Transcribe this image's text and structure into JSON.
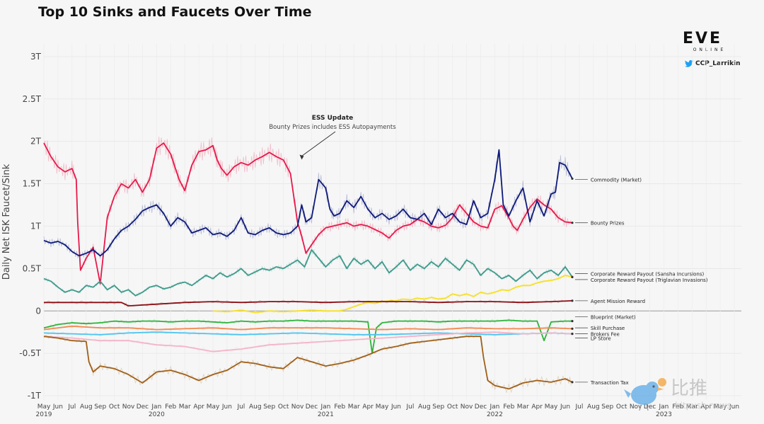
{
  "page": {
    "title": "Top 10 Sinks and Faucets Over Time",
    "logo": {
      "word": "EVE",
      "sub": "ONLINE"
    },
    "twitter_handle": "CCP_Larrikin",
    "watermark": {
      "chinese": "比推",
      "url": "bitpush.news"
    }
  },
  "colors": {
    "bounty": "#e8194a",
    "commodity": "#0e1a7a",
    "sansha": "#3d9a8b",
    "triglavian": "#f5e02a",
    "agent": "#8b0f14",
    "blueprint": "#2db43c",
    "skill": "#f08a52",
    "brokers": "#4fc4f0",
    "lpstore": "#f4b4c8",
    "tax": "#a06018"
  },
  "chart_data": {
    "type": "line",
    "title": "Top 10 Sinks and Faucets Over Time",
    "ylabel": "Daily Net ISK Faucet/Sink",
    "xlabel": "",
    "ylim": [
      -1.05,
      3.15
    ],
    "xlim": [
      0,
      49.5
    ],
    "grid": true,
    "yticks": [
      {
        "v": 3,
        "label": "3T"
      },
      {
        "v": 2.5,
        "label": "2.5T"
      },
      {
        "v": 2,
        "label": "2T"
      },
      {
        "v": 1.5,
        "label": "1.5T"
      },
      {
        "v": 1,
        "label": "1T"
      },
      {
        "v": 0.5,
        "label": "0.5T"
      },
      {
        "v": 0,
        "label": "0"
      },
      {
        "v": -0.5,
        "label": "-0.5T"
      },
      {
        "v": -1,
        "label": "-1T"
      }
    ],
    "months": [
      "May",
      "Jun",
      "Jul",
      "Aug",
      "Sep",
      "Oct",
      "Nov",
      "Dec",
      "Jan",
      "Feb",
      "Mar",
      "Apr",
      "May",
      "Jun",
      "Jul",
      "Aug",
      "Sep",
      "Oct",
      "Nov",
      "Dec",
      "Jan",
      "Feb",
      "Mar",
      "Apr",
      "May",
      "Jun",
      "Jul",
      "Aug",
      "Sep",
      "Oct",
      "Nov",
      "Dec",
      "Jan",
      "Feb",
      "Mar",
      "Apr",
      "May",
      "Jun",
      "Jul",
      "Aug",
      "Sep",
      "Oct",
      "Nov",
      "Dec",
      "Jan",
      "Feb",
      "Mar",
      "Apr",
      "May",
      "Jun",
      "Jul",
      "Aug",
      "Sep",
      "Oct",
      "Nov",
      "Dec",
      "Jan"
    ],
    "years": [
      {
        "label": "2019",
        "x": 0
      },
      {
        "label": "2020",
        "x": 8
      },
      {
        "label": "2021",
        "x": 20
      },
      {
        "label": "2022",
        "x": 32
      },
      {
        "label": "2023",
        "x": 44
      }
    ],
    "annotation": {
      "title": "ESS Update",
      "text": "Bounty Prizes includes ESS Autopayments",
      "x": 18.3,
      "y": 1.76
    },
    "series": [
      {
        "name": "Bounty Prizes",
        "color_key": "bounty",
        "x": [
          0,
          0.5,
          1,
          1.5,
          2,
          2.3,
          2.4,
          2.6,
          3,
          3.5,
          4,
          4.5,
          5,
          5.5,
          6,
          6.5,
          7,
          7.5,
          8,
          8.5,
          9,
          9.3,
          9.6,
          10,
          10.5,
          11,
          11.5,
          12,
          12.3,
          12.6,
          13,
          13.5,
          14,
          14.5,
          15,
          15.5,
          16,
          16.5,
          17,
          17.5,
          18,
          18.3,
          18.6,
          19,
          19.5,
          20,
          20.5,
          21,
          21.5,
          22,
          22.5,
          23,
          23.5,
          24,
          24.5,
          25,
          25.5,
          26,
          26.5,
          27,
          27.5,
          28,
          28.5,
          29,
          29.5,
          30,
          30.5,
          31,
          31.5,
          32,
          32.5,
          33,
          33.3,
          33.6,
          34,
          34.5,
          35,
          35.5,
          36,
          36.5,
          37,
          37.5
        ],
        "y": [
          1.98,
          1.82,
          1.7,
          1.64,
          1.68,
          1.55,
          1.05,
          0.48,
          0.62,
          0.75,
          0.32,
          1.1,
          1.35,
          1.5,
          1.45,
          1.55,
          1.4,
          1.55,
          1.92,
          1.98,
          1.85,
          1.7,
          1.55,
          1.42,
          1.72,
          1.88,
          1.9,
          1.95,
          1.78,
          1.68,
          1.6,
          1.7,
          1.75,
          1.72,
          1.78,
          1.82,
          1.87,
          1.82,
          1.78,
          1.62,
          1.05,
          0.88,
          0.68,
          0.78,
          0.9,
          0.98,
          1.0,
          1.02,
          1.04,
          1.0,
          1.02,
          1.0,
          0.96,
          0.92,
          0.86,
          0.95,
          1.0,
          1.02,
          1.08,
          1.05,
          1.0,
          0.98,
          1.01,
          1.1,
          1.25,
          1.15,
          1.05,
          1.0,
          0.98,
          1.2,
          1.24,
          1.1,
          1.0,
          0.95,
          1.08,
          1.22,
          1.32,
          1.25,
          1.2,
          1.1,
          1.05,
          1.04
        ]
      },
      {
        "name": "Commodity (Market)",
        "color_key": "commodity",
        "x": [
          0,
          0.5,
          1,
          1.5,
          2,
          2.5,
          3,
          3.5,
          4,
          4.5,
          5,
          5.5,
          6,
          6.5,
          7,
          7.5,
          8,
          8.5,
          9,
          9.5,
          10,
          10.5,
          11,
          11.5,
          12,
          12.5,
          13,
          13.5,
          14,
          14.5,
          15,
          15.5,
          16,
          16.5,
          17,
          17.5,
          18,
          18.3,
          18.6,
          19,
          19.5,
          20,
          20.3,
          20.6,
          21,
          21.5,
          22,
          22.5,
          23,
          23.5,
          24,
          24.5,
          25,
          25.5,
          26,
          26.5,
          27,
          27.5,
          28,
          28.5,
          29,
          29.5,
          30,
          30.5,
          31,
          31.5,
          32,
          32.3,
          32.6,
          33,
          33.5,
          34,
          34.5,
          35,
          35.5,
          36,
          36.3,
          36.6,
          37,
          37.5
        ],
        "y": [
          0.83,
          0.8,
          0.82,
          0.78,
          0.7,
          0.65,
          0.68,
          0.72,
          0.65,
          0.72,
          0.85,
          0.95,
          1.0,
          1.08,
          1.18,
          1.22,
          1.25,
          1.15,
          1.0,
          1.1,
          1.05,
          0.92,
          0.95,
          0.98,
          0.9,
          0.92,
          0.88,
          0.95,
          1.1,
          0.92,
          0.9,
          0.95,
          0.98,
          0.92,
          0.9,
          0.92,
          1.0,
          1.25,
          1.05,
          1.1,
          1.55,
          1.45,
          1.2,
          1.12,
          1.15,
          1.3,
          1.22,
          1.35,
          1.2,
          1.1,
          1.15,
          1.08,
          1.12,
          1.2,
          1.1,
          1.08,
          1.15,
          1.02,
          1.2,
          1.1,
          1.15,
          1.05,
          1.02,
          1.3,
          1.1,
          1.15,
          1.55,
          1.9,
          1.25,
          1.12,
          1.3,
          1.45,
          1.05,
          1.3,
          1.12,
          1.38,
          1.4,
          1.75,
          1.72,
          1.56
        ]
      },
      {
        "name": "Corporate Reward Payout (Sansha Incursions)",
        "color_key": "sansha",
        "x": [
          0,
          0.5,
          1,
          1.5,
          2,
          2.5,
          3,
          3.5,
          4,
          4.5,
          5,
          5.5,
          6,
          6.5,
          7,
          7.5,
          8,
          8.5,
          9,
          9.5,
          10,
          10.5,
          11,
          11.5,
          12,
          12.5,
          13,
          13.5,
          14,
          14.5,
          15,
          15.5,
          16,
          16.5,
          17,
          17.5,
          18,
          18.5,
          19,
          19.5,
          20,
          20.5,
          21,
          21.5,
          22,
          22.5,
          23,
          23.5,
          24,
          24.5,
          25,
          25.5,
          26,
          26.5,
          27,
          27.5,
          28,
          28.5,
          29,
          29.5,
          30,
          30.5,
          31,
          31.5,
          32,
          32.5,
          33,
          33.5,
          34,
          34.5,
          35,
          35.5,
          36,
          36.5,
          37,
          37.5
        ],
        "y": [
          0.38,
          0.35,
          0.28,
          0.22,
          0.25,
          0.22,
          0.3,
          0.28,
          0.35,
          0.25,
          0.3,
          0.22,
          0.25,
          0.18,
          0.22,
          0.28,
          0.3,
          0.26,
          0.28,
          0.32,
          0.34,
          0.3,
          0.36,
          0.42,
          0.38,
          0.45,
          0.4,
          0.44,
          0.5,
          0.42,
          0.46,
          0.5,
          0.48,
          0.52,
          0.5,
          0.55,
          0.6,
          0.52,
          0.72,
          0.62,
          0.52,
          0.6,
          0.65,
          0.5,
          0.62,
          0.55,
          0.6,
          0.5,
          0.58,
          0.45,
          0.52,
          0.6,
          0.48,
          0.55,
          0.5,
          0.58,
          0.52,
          0.62,
          0.55,
          0.48,
          0.6,
          0.55,
          0.42,
          0.5,
          0.45,
          0.38,
          0.42,
          0.35,
          0.42,
          0.48,
          0.38,
          0.45,
          0.48,
          0.42,
          0.52,
          0.4
        ]
      },
      {
        "name": "Corporate Reward Payout (Triglavian Invasions)",
        "color_key": "triglavian",
        "x": [
          12,
          13,
          14,
          15,
          16,
          17,
          18,
          19,
          20,
          21,
          21.5,
          22,
          22.5,
          23,
          23.5,
          24,
          24.5,
          25,
          25.5,
          26,
          26.5,
          27,
          27.5,
          28,
          28.5,
          29,
          29.5,
          30,
          30.5,
          31,
          31.5,
          32,
          32.5,
          33,
          33.5,
          34,
          34.5,
          35,
          35.5,
          36,
          36.5,
          37,
          37.5
        ],
        "y": [
          0,
          -0.01,
          0.01,
          -0.02,
          0,
          -0.01,
          0,
          0.01,
          0,
          0,
          0.02,
          0.05,
          0.08,
          0.1,
          0.09,
          0.11,
          0.12,
          0.12,
          0.14,
          0.13,
          0.15,
          0.14,
          0.16,
          0.14,
          0.15,
          0.2,
          0.18,
          0.2,
          0.17,
          0.22,
          0.2,
          0.22,
          0.25,
          0.24,
          0.28,
          0.3,
          0.3,
          0.33,
          0.35,
          0.36,
          0.38,
          0.42,
          0.4
        ]
      },
      {
        "name": "Agent Mission Reward",
        "color_key": "agent",
        "x": [
          0,
          2,
          4,
          5.5,
          6,
          8,
          10,
          12,
          14,
          16,
          18,
          20,
          22,
          24,
          26,
          28,
          30,
          32,
          34,
          36,
          37.5
        ],
        "y": [
          0.1,
          0.1,
          0.1,
          0.1,
          0.06,
          0.08,
          0.1,
          0.11,
          0.1,
          0.11,
          0.11,
          0.1,
          0.11,
          0.11,
          0.11,
          0.1,
          0.11,
          0.11,
          0.1,
          0.11,
          0.12
        ]
      },
      {
        "name": "Blueprint (Market)",
        "color_key": "blueprint",
        "x": [
          0,
          1,
          2,
          3,
          4,
          5,
          6,
          7,
          8,
          9,
          10,
          11,
          12,
          13,
          14,
          15,
          16,
          17,
          18,
          19,
          20,
          21,
          22,
          23,
          23.3,
          23.6,
          24,
          25,
          26,
          27,
          28,
          29,
          30,
          31,
          32,
          33,
          34,
          35,
          35.5,
          36,
          37,
          37.5
        ],
        "y": [
          -0.2,
          -0.16,
          -0.14,
          -0.15,
          -0.14,
          -0.12,
          -0.13,
          -0.12,
          -0.12,
          -0.13,
          -0.12,
          -0.12,
          -0.13,
          -0.14,
          -0.12,
          -0.13,
          -0.12,
          -0.12,
          -0.11,
          -0.12,
          -0.12,
          -0.12,
          -0.12,
          -0.13,
          -0.5,
          -0.2,
          -0.14,
          -0.12,
          -0.12,
          -0.12,
          -0.13,
          -0.12,
          -0.12,
          -0.12,
          -0.12,
          -0.11,
          -0.12,
          -0.12,
          -0.35,
          -0.13,
          -0.12,
          -0.12
        ]
      },
      {
        "name": "Skill Purchase",
        "color_key": "skill",
        "x": [
          0,
          2,
          4,
          6,
          8,
          10,
          12,
          14,
          16,
          18,
          20,
          22,
          24,
          26,
          28,
          30,
          32,
          34,
          36,
          37.5
        ],
        "y": [
          -0.22,
          -0.18,
          -0.2,
          -0.2,
          -0.22,
          -0.21,
          -0.2,
          -0.22,
          -0.2,
          -0.2,
          -0.2,
          -0.21,
          -0.22,
          -0.21,
          -0.22,
          -0.2,
          -0.21,
          -0.21,
          -0.2,
          -0.21
        ]
      },
      {
        "name": "Brokers Fee",
        "color_key": "brokers",
        "x": [
          0,
          2,
          4,
          6,
          8,
          10,
          12,
          14,
          16,
          18,
          20,
          22,
          24,
          26,
          28,
          30,
          32,
          34,
          36,
          37.5
        ],
        "y": [
          -0.26,
          -0.27,
          -0.28,
          -0.26,
          -0.25,
          -0.26,
          -0.27,
          -0.28,
          -0.27,
          -0.26,
          -0.27,
          -0.28,
          -0.28,
          -0.27,
          -0.26,
          -0.27,
          -0.28,
          -0.27,
          -0.26,
          -0.27
        ]
      },
      {
        "name": "LP Store",
        "color_key": "lpstore",
        "x": [
          0,
          2,
          4,
          6,
          8,
          10,
          12,
          14,
          16,
          18,
          20,
          22,
          24,
          26,
          28,
          30,
          32,
          34,
          36,
          37.5
        ],
        "y": [
          -0.3,
          -0.32,
          -0.35,
          -0.35,
          -0.4,
          -0.42,
          -0.48,
          -0.45,
          -0.4,
          -0.38,
          -0.36,
          -0.34,
          -0.32,
          -0.3,
          -0.28,
          -0.26,
          -0.25,
          -0.27,
          -0.26,
          -0.27
        ]
      },
      {
        "name": "Transaction Tax",
        "color_key": "tax",
        "x": [
          0,
          1,
          2,
          3,
          3.2,
          3.5,
          4,
          5,
          6,
          7,
          8,
          9,
          10,
          11,
          12,
          13,
          14,
          15,
          16,
          17,
          18,
          19,
          20,
          21,
          22,
          23,
          24,
          25,
          26,
          27,
          28,
          29,
          30,
          31,
          31.2,
          31.5,
          32,
          33,
          34,
          35,
          36,
          37,
          37.5
        ],
        "y": [
          -0.3,
          -0.32,
          -0.35,
          -0.36,
          -0.6,
          -0.72,
          -0.65,
          -0.68,
          -0.75,
          -0.85,
          -0.72,
          -0.7,
          -0.75,
          -0.82,
          -0.75,
          -0.7,
          -0.6,
          -0.62,
          -0.66,
          -0.68,
          -0.55,
          -0.6,
          -0.65,
          -0.62,
          -0.58,
          -0.52,
          -0.45,
          -0.42,
          -0.38,
          -0.36,
          -0.34,
          -0.32,
          -0.3,
          -0.3,
          -0.55,
          -0.82,
          -0.88,
          -0.92,
          -0.85,
          -0.82,
          -0.84,
          -0.8,
          -0.84
        ]
      }
    ],
    "legend_labels": [
      {
        "text": "Commodity (Market)",
        "y": 1.55,
        "color_key": "commodity"
      },
      {
        "text": "Bounty Prizes",
        "y": 1.04,
        "color_key": "bounty"
      },
      {
        "text": "Corporate Reward Payout (Sansha Incursions)",
        "y": 0.44,
        "color_key": "sansha"
      },
      {
        "text": "Corporate Reward Payout (Triglavian Invasions)",
        "y": 0.37,
        "color_key": "triglavian"
      },
      {
        "text": "Agent Mission Reward",
        "y": 0.12,
        "color_key": "agent"
      },
      {
        "text": "Blueprint (Market)",
        "y": -0.07,
        "color_key": "blueprint"
      },
      {
        "text": "Skill Purchase",
        "y": -0.2,
        "color_key": "skill"
      },
      {
        "text": "Brokers Fee",
        "y": -0.27,
        "color_key": "brokers"
      },
      {
        "text": "LP Store",
        "y": -0.32,
        "color_key": "lpstore"
      },
      {
        "text": "Transaction Tax",
        "y": -0.84,
        "color_key": "tax"
      }
    ]
  }
}
